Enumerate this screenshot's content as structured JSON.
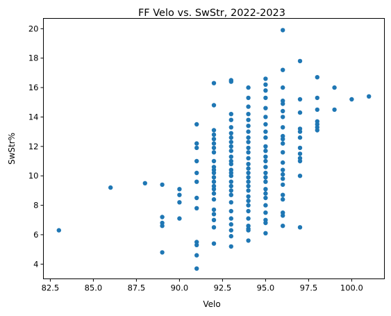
{
  "chart_data": {
    "type": "scatter",
    "title": "FF Velo vs. SwStr, 2022-2023",
    "xlabel": "Velo",
    "ylabel": "SwStr%",
    "xlim": [
      82.1,
      101.9
    ],
    "ylim": [
      3.0,
      20.7
    ],
    "xticks": [
      82.5,
      85.0,
      87.5,
      90.0,
      92.5,
      95.0,
      97.5,
      100.0
    ],
    "xtick_labels": [
      "82.5",
      "85.0",
      "87.5",
      "90.0",
      "92.5",
      "95.0",
      "97.5",
      "100.0"
    ],
    "yticks": [
      4,
      6,
      8,
      10,
      12,
      14,
      16,
      18,
      20
    ],
    "ytick_labels": [
      "4",
      "6",
      "8",
      "10",
      "12",
      "14",
      "16",
      "18",
      "20"
    ],
    "grid": false,
    "color": "#1f77b4",
    "points": [
      [
        83,
        6.3
      ],
      [
        86,
        9.2
      ],
      [
        88,
        9.5
      ],
      [
        89,
        9.4
      ],
      [
        89,
        7.2
      ],
      [
        89,
        6.8
      ],
      [
        89,
        6.6
      ],
      [
        89,
        4.8
      ],
      [
        90,
        9.1
      ],
      [
        90,
        8.7
      ],
      [
        90,
        8.2
      ],
      [
        90,
        7.1
      ],
      [
        91,
        13.5
      ],
      [
        91,
        12.2
      ],
      [
        91,
        11.9
      ],
      [
        91,
        11.0
      ],
      [
        91,
        10.2
      ],
      [
        91,
        9.6
      ],
      [
        91,
        8.5
      ],
      [
        91,
        7.8
      ],
      [
        91,
        5.5
      ],
      [
        91,
        5.3
      ],
      [
        91,
        4.6
      ],
      [
        91,
        3.7
      ],
      [
        92,
        16.3
      ],
      [
        92,
        14.8
      ],
      [
        92,
        13.1
      ],
      [
        92,
        12.8
      ],
      [
        92,
        12.5
      ],
      [
        92,
        12.2
      ],
      [
        92,
        11.9
      ],
      [
        92,
        11.6
      ],
      [
        92,
        11.0
      ],
      [
        92,
        10.6
      ],
      [
        92,
        10.4
      ],
      [
        92,
        10.2
      ],
      [
        92,
        9.9
      ],
      [
        92,
        9.6
      ],
      [
        92,
        9.3
      ],
      [
        92,
        9.1
      ],
      [
        92,
        8.8
      ],
      [
        92,
        8.4
      ],
      [
        92,
        7.7
      ],
      [
        92,
        7.4
      ],
      [
        92,
        7.0
      ],
      [
        92,
        6.5
      ],
      [
        92,
        5.4
      ],
      [
        93,
        16.5
      ],
      [
        93,
        16.4
      ],
      [
        93,
        14.2
      ],
      [
        93,
        13.8
      ],
      [
        93,
        13.3
      ],
      [
        93,
        12.9
      ],
      [
        93,
        12.6
      ],
      [
        93,
        12.3
      ],
      [
        93,
        12.0
      ],
      [
        93,
        11.7
      ],
      [
        93,
        11.3
      ],
      [
        93,
        11.0
      ],
      [
        93,
        10.8
      ],
      [
        93,
        10.4
      ],
      [
        93,
        10.2
      ],
      [
        93,
        10.0
      ],
      [
        93,
        9.6
      ],
      [
        93,
        9.3
      ],
      [
        93,
        9.0
      ],
      [
        93,
        8.7
      ],
      [
        93,
        8.2
      ],
      [
        93,
        7.6
      ],
      [
        93,
        7.1
      ],
      [
        93,
        6.7
      ],
      [
        93,
        6.3
      ],
      [
        93,
        5.9
      ],
      [
        93,
        5.2
      ],
      [
        94,
        16.0
      ],
      [
        94,
        15.3
      ],
      [
        94,
        14.7
      ],
      [
        94,
        14.2
      ],
      [
        94,
        13.8
      ],
      [
        94,
        13.4
      ],
      [
        94,
        13.0
      ],
      [
        94,
        12.6
      ],
      [
        94,
        12.3
      ],
      [
        94,
        11.9
      ],
      [
        94,
        11.6
      ],
      [
        94,
        11.2
      ],
      [
        94,
        10.8
      ],
      [
        94,
        10.5
      ],
      [
        94,
        10.2
      ],
      [
        94,
        9.9
      ],
      [
        94,
        9.6
      ],
      [
        94,
        9.3
      ],
      [
        94,
        9.0
      ],
      [
        94,
        8.6
      ],
      [
        94,
        8.3
      ],
      [
        94,
        8.0
      ],
      [
        94,
        7.6
      ],
      [
        94,
        7.1
      ],
      [
        94,
        6.6
      ],
      [
        94,
        6.4
      ],
      [
        94,
        6.3
      ],
      [
        94,
        5.6
      ],
      [
        95,
        16.6
      ],
      [
        95,
        16.2
      ],
      [
        95,
        15.8
      ],
      [
        95,
        15.3
      ],
      [
        95,
        14.6
      ],
      [
        95,
        14.0
      ],
      [
        95,
        13.5
      ],
      [
        95,
        13.0
      ],
      [
        95,
        12.6
      ],
      [
        95,
        12.0
      ],
      [
        95,
        11.7
      ],
      [
        95,
        11.3
      ],
      [
        95,
        11.0
      ],
      [
        95,
        10.6
      ],
      [
        95,
        10.2
      ],
      [
        95,
        9.9
      ],
      [
        95,
        9.6
      ],
      [
        95,
        9.1
      ],
      [
        95,
        8.8
      ],
      [
        95,
        8.5
      ],
      [
        95,
        8.0
      ],
      [
        95,
        7.5
      ],
      [
        95,
        7.0
      ],
      [
        95,
        6.8
      ],
      [
        95,
        6.1
      ],
      [
        96,
        19.9
      ],
      [
        96,
        17.2
      ],
      [
        96,
        16.0
      ],
      [
        96,
        15.1
      ],
      [
        96,
        14.9
      ],
      [
        96,
        14.4
      ],
      [
        96,
        14.0
      ],
      [
        96,
        13.3
      ],
      [
        96,
        12.7
      ],
      [
        96,
        12.5
      ],
      [
        96,
        12.2
      ],
      [
        96,
        11.6
      ],
      [
        96,
        10.9
      ],
      [
        96,
        10.4
      ],
      [
        96,
        10.1
      ],
      [
        96,
        9.8
      ],
      [
        96,
        9.4
      ],
      [
        96,
        8.7
      ],
      [
        96,
        8.4
      ],
      [
        96,
        7.5
      ],
      [
        96,
        7.3
      ],
      [
        96,
        6.6
      ],
      [
        97,
        17.8
      ],
      [
        97,
        15.2
      ],
      [
        97,
        14.3
      ],
      [
        97,
        13.2
      ],
      [
        97,
        13.0
      ],
      [
        97,
        12.6
      ],
      [
        97,
        11.9
      ],
      [
        97,
        11.5
      ],
      [
        97,
        11.2
      ],
      [
        97,
        11.0
      ],
      [
        97,
        10.0
      ],
      [
        97,
        6.5
      ],
      [
        98,
        16.7
      ],
      [
        98,
        15.3
      ],
      [
        98,
        14.5
      ],
      [
        98,
        13.7
      ],
      [
        98,
        13.5
      ],
      [
        98,
        13.3
      ],
      [
        98,
        13.1
      ],
      [
        99,
        16.0
      ],
      [
        99,
        14.5
      ],
      [
        100,
        15.2
      ],
      [
        101,
        15.4
      ]
    ]
  }
}
